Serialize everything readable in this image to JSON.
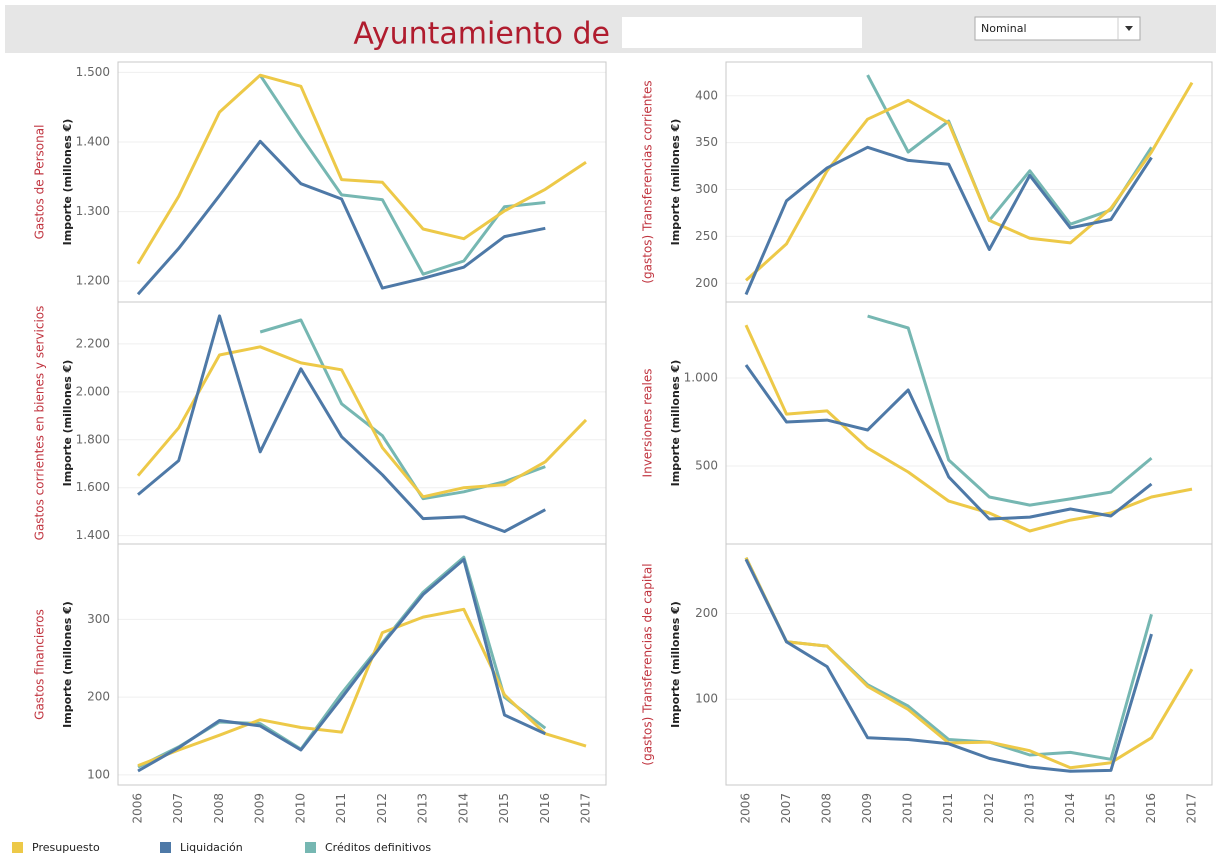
{
  "header": {
    "title": "Ayuntamiento de",
    "dropdown": "Nominal"
  },
  "legend": [
    {
      "name": "Presupuesto",
      "color": "#edc948"
    },
    {
      "name": "Liquidación",
      "color": "#4e79a7"
    },
    {
      "name": "Créditos definitivos",
      "color": "#76b7b2"
    }
  ],
  "chart_data": [
    {
      "type": "line",
      "category_label": "Gastos de Personal",
      "y_label": "Importe (millones €)",
      "categories": [
        "2006",
        "2007",
        "2008",
        "2009",
        "2010",
        "2011",
        "2012",
        "2013",
        "2014",
        "2015",
        "2016",
        "2017"
      ],
      "ylim": [
        1170,
        1515
      ],
      "yticks": [
        {
          "value": 1200,
          "label": "1.200"
        },
        {
          "value": 1300,
          "label": "1.300"
        },
        {
          "value": 1400,
          "label": "1.400"
        },
        {
          "value": 1500,
          "label": "1.500"
        }
      ],
      "series": [
        {
          "values": [
            1225,
            1322,
            1443,
            1496,
            1480,
            1346,
            1342,
            1275,
            1261,
            1301,
            1332,
            1371
          ]
        },
        {
          "values": [
            1181,
            1247,
            1323,
            1401,
            1340,
            1318,
            1190,
            1204,
            1220,
            1264,
            1276,
            null
          ]
        },
        {
          "values": [
            null,
            null,
            null,
            1496,
            1408,
            1324,
            1317,
            1210,
            1229,
            1307,
            1313,
            null
          ]
        }
      ]
    },
    {
      "type": "line",
      "category_label": "(gastos) Transferencias corrientes",
      "y_label": "Importe (millones €)",
      "categories": [
        "2006",
        "2007",
        "2008",
        "2009",
        "2010",
        "2011",
        "2012",
        "2013",
        "2014",
        "2015",
        "2016",
        "2017"
      ],
      "ylim": [
        180,
        436
      ],
      "yticks": [
        200,
        250,
        300,
        350,
        400
      ],
      "series": [
        {
          "values": [
            203,
            242,
            320,
            375,
            395,
            371,
            267,
            248,
            243,
            280,
            340,
            414
          ]
        },
        {
          "values": [
            188,
            288,
            323,
            345,
            331,
            327,
            236,
            315,
            259,
            268,
            334,
            null
          ]
        },
        {
          "values": [
            null,
            null,
            null,
            422,
            340,
            373,
            267,
            320,
            263,
            278,
            345,
            null
          ]
        }
      ]
    },
    {
      "type": "line",
      "category_label": "Gastos corrientes en bienes y servicios",
      "y_label": "Importe (millones €)",
      "categories": [
        "2006",
        "2007",
        "2008",
        "2009",
        "2010",
        "2011",
        "2012",
        "2013",
        "2014",
        "2015",
        "2016",
        "2017"
      ],
      "ylim": [
        1365,
        2375
      ],
      "yticks": [
        {
          "value": 1400,
          "label": "1.400"
        },
        {
          "value": 1600,
          "label": "1.600"
        },
        {
          "value": 1800,
          "label": "1.800"
        },
        {
          "value": 2000,
          "label": "2.000"
        },
        {
          "value": 2200,
          "label": "2.200"
        }
      ],
      "series": [
        {
          "values": [
            1650,
            1850,
            2154,
            2188,
            2121,
            2092,
            1767,
            1562,
            1600,
            1612,
            1708,
            1883
          ]
        },
        {
          "values": [
            1571,
            1713,
            2317,
            1750,
            2096,
            1813,
            1654,
            1471,
            1479,
            1417,
            1508,
            null
          ]
        },
        {
          "values": [
            null,
            null,
            null,
            2250,
            2300,
            1950,
            1817,
            1554,
            1583,
            1625,
            1688,
            null
          ]
        }
      ]
    },
    {
      "type": "line",
      "category_label": "Inversiones reales",
      "y_label": "Importe (millones €)",
      "categories": [
        "2006",
        "2007",
        "2008",
        "2009",
        "2010",
        "2011",
        "2012",
        "2013",
        "2014",
        "2015",
        "2016",
        "2017"
      ],
      "ylim": [
        57,
        1432
      ],
      "yticks": [
        500,
        {
          "value": 1000,
          "label": "1.000"
        }
      ],
      "series": [
        {
          "values": [
            1301,
            795,
            813,
            602,
            466,
            301,
            233,
            131,
            193,
            233,
            324,
            369
          ]
        },
        {
          "values": [
            1074,
            750,
            761,
            705,
            932,
            438,
            199,
            210,
            256,
            216,
            398,
            null
          ]
        },
        {
          "values": [
            null,
            null,
            null,
            1352,
            1284,
            534,
            324,
            278,
            313,
            352,
            545,
            null
          ]
        }
      ]
    },
    {
      "type": "line",
      "category_label": "Gastos financieros",
      "y_label": "Importe (millones €)",
      "categories": [
        "2006",
        "2007",
        "2008",
        "2009",
        "2010",
        "2011",
        "2012",
        "2013",
        "2014",
        "2015",
        "2016",
        "2017"
      ],
      "ylim": [
        87,
        397
      ],
      "yticks": [
        100,
        200,
        300
      ],
      "series": [
        {
          "values": [
            112,
            132,
            151,
            171,
            161,
            155,
            283,
            303,
            313,
            203,
            153,
            137
          ]
        },
        {
          "values": [
            105,
            135,
            170,
            163,
            132,
            199,
            268,
            332,
            377,
            177,
            153,
            null
          ]
        },
        {
          "values": [
            110,
            136,
            168,
            166,
            133,
            205,
            270,
            335,
            380,
            200,
            160,
            null
          ]
        }
      ]
    },
    {
      "type": "line",
      "category_label": "(gastos) Transferencias de capital",
      "y_label": "Importe (millones €)",
      "categories": [
        "2006",
        "2007",
        "2008",
        "2009",
        "2010",
        "2011",
        "2012",
        "2013",
        "2014",
        "2015",
        "2016",
        "2017"
      ],
      "ylim": [
        0,
        281
      ],
      "yticks": [
        100,
        200
      ],
      "series": [
        {
          "values": [
            265,
            167,
            162,
            115,
            88,
            49,
            50,
            40,
            20,
            26,
            55,
            135
          ]
        },
        {
          "values": [
            263,
            167,
            138,
            55,
            53,
            48,
            31,
            21,
            16,
            17,
            176,
            null
          ]
        },
        {
          "values": [
            265,
            167,
            162,
            117,
            92,
            53,
            50,
            35,
            38,
            30,
            199,
            null
          ]
        }
      ]
    }
  ]
}
